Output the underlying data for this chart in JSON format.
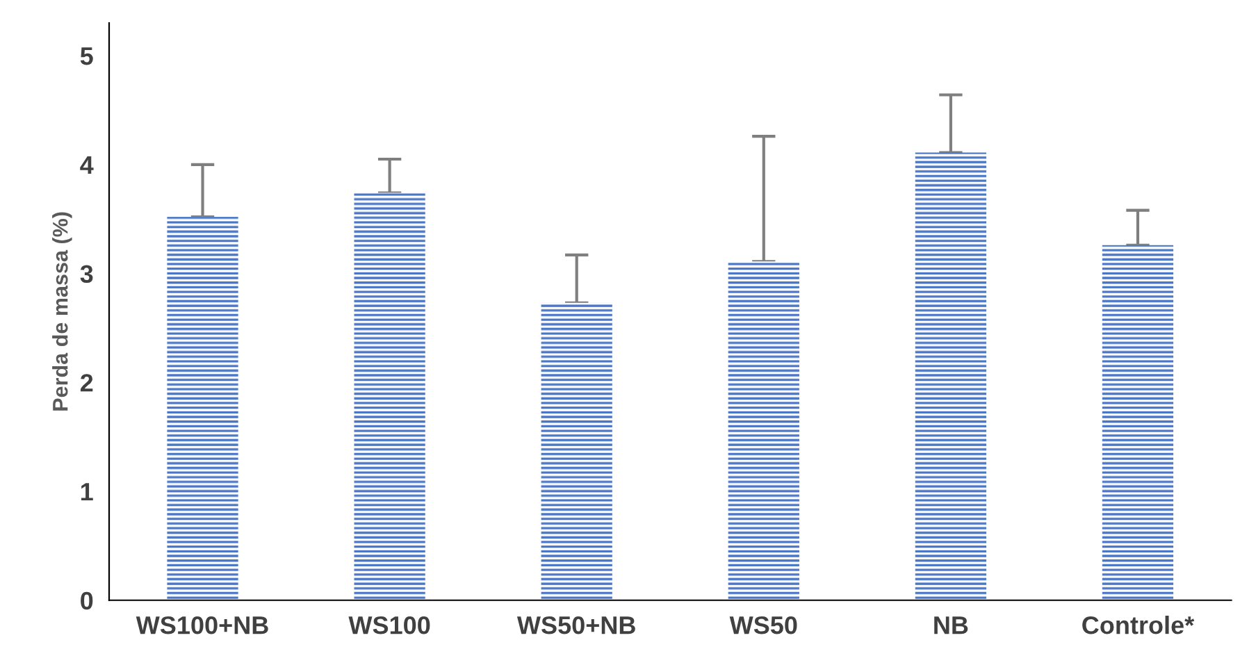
{
  "chart_data": {
    "type": "bar",
    "ylabel": "Perda de massa (%)",
    "categories": [
      "WS100+NB",
      "WS100",
      "WS50+NB",
      "WS50",
      "NB",
      "Controle*"
    ],
    "values": [
      3.52,
      3.74,
      2.73,
      3.11,
      4.11,
      3.26
    ],
    "errors": [
      [
        3.52,
        4.0
      ],
      [
        3.74,
        4.05
      ],
      [
        2.73,
        3.17
      ],
      [
        3.11,
        4.26
      ],
      [
        4.11,
        4.64
      ],
      [
        3.26,
        3.58
      ]
    ],
    "color": "#4a76c6",
    "ylim": [
      0,
      5.3
    ],
    "yticks": [
      0,
      1,
      2,
      3,
      4,
      5
    ],
    "grid": false
  }
}
